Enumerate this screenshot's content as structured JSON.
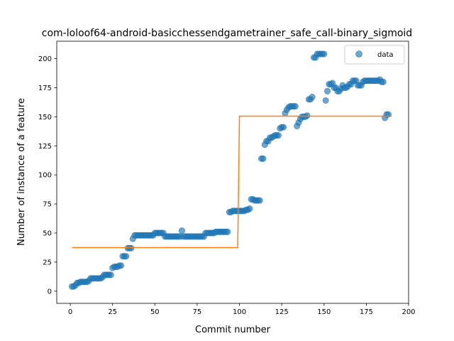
{
  "chart_data": {
    "type": "scatter",
    "title": "com-loloof64-android-basicchessendgametrainer_safe_call-binary_sigmoid",
    "xlabel": "Commit number",
    "ylabel": "Number of instance of a feature",
    "xlim": [
      -8,
      200
    ],
    "ylim": [
      -10.5,
      215
    ],
    "xticks": [
      0,
      25,
      50,
      75,
      100,
      125,
      150,
      175,
      200
    ],
    "yticks": [
      0,
      25,
      50,
      75,
      100,
      125,
      150,
      175,
      200
    ],
    "legend": {
      "position": "top-right",
      "entries": [
        "data"
      ]
    },
    "colors": {
      "data": "#1f77b4",
      "fit": "#ff7f0e"
    },
    "series": [
      {
        "name": "data",
        "kind": "scatter",
        "points": [
          [
            1,
            4
          ],
          [
            2,
            4
          ],
          [
            3,
            5
          ],
          [
            4,
            7
          ],
          [
            5,
            7
          ],
          [
            6,
            8
          ],
          [
            7,
            8
          ],
          [
            8,
            8
          ],
          [
            9,
            8
          ],
          [
            10,
            8
          ],
          [
            11,
            9
          ],
          [
            12,
            11
          ],
          [
            13,
            11
          ],
          [
            14,
            11
          ],
          [
            15,
            11
          ],
          [
            16,
            11
          ],
          [
            17,
            11
          ],
          [
            18,
            11
          ],
          [
            19,
            12
          ],
          [
            20,
            14
          ],
          [
            21,
            14
          ],
          [
            22,
            14
          ],
          [
            23,
            14
          ],
          [
            24,
            14
          ],
          [
            25,
            20
          ],
          [
            26,
            21
          ],
          [
            27,
            21
          ],
          [
            28,
            21
          ],
          [
            29,
            22
          ],
          [
            30,
            22
          ],
          [
            31,
            30
          ],
          [
            32,
            30
          ],
          [
            33,
            30
          ],
          [
            34,
            37
          ],
          [
            35,
            37
          ],
          [
            36,
            37
          ],
          [
            37,
            45
          ],
          [
            38,
            48
          ],
          [
            39,
            48
          ],
          [
            40,
            48
          ],
          [
            41,
            48
          ],
          [
            42,
            48
          ],
          [
            43,
            48
          ],
          [
            44,
            48
          ],
          [
            45,
            48
          ],
          [
            46,
            48
          ],
          [
            47,
            48
          ],
          [
            48,
            48
          ],
          [
            49,
            48
          ],
          [
            50,
            50
          ],
          [
            51,
            50
          ],
          [
            52,
            50
          ],
          [
            53,
            50
          ],
          [
            54,
            50
          ],
          [
            55,
            50
          ],
          [
            56,
            47
          ],
          [
            57,
            47
          ],
          [
            58,
            47
          ],
          [
            59,
            47
          ],
          [
            60,
            47
          ],
          [
            61,
            47
          ],
          [
            62,
            47
          ],
          [
            63,
            47
          ],
          [
            64,
            47
          ],
          [
            65,
            47
          ],
          [
            66,
            52
          ],
          [
            67,
            47
          ],
          [
            68,
            47
          ],
          [
            69,
            47
          ],
          [
            70,
            47
          ],
          [
            71,
            47
          ],
          [
            72,
            47
          ],
          [
            73,
            47
          ],
          [
            74,
            47
          ],
          [
            75,
            47
          ],
          [
            76,
            47
          ],
          [
            77,
            47
          ],
          [
            78,
            47
          ],
          [
            79,
            47
          ],
          [
            80,
            50
          ],
          [
            81,
            50
          ],
          [
            82,
            50
          ],
          [
            83,
            50
          ],
          [
            84,
            50
          ],
          [
            85,
            50
          ],
          [
            86,
            51
          ],
          [
            87,
            51
          ],
          [
            88,
            51
          ],
          [
            89,
            51
          ],
          [
            90,
            51
          ],
          [
            91,
            51
          ],
          [
            92,
            51
          ],
          [
            93,
            51
          ],
          [
            94,
            68
          ],
          [
            95,
            68
          ],
          [
            96,
            69
          ],
          [
            97,
            69
          ],
          [
            98,
            69
          ],
          [
            99,
            69
          ],
          [
            100,
            69
          ],
          [
            101,
            69
          ],
          [
            102,
            69
          ],
          [
            103,
            69
          ],
          [
            104,
            70
          ],
          [
            105,
            70
          ],
          [
            106,
            71
          ],
          [
            107,
            79
          ],
          [
            108,
            79
          ],
          [
            109,
            78
          ],
          [
            110,
            78
          ],
          [
            111,
            78
          ],
          [
            112,
            78
          ],
          [
            113,
            114
          ],
          [
            114,
            114
          ],
          [
            115,
            126
          ],
          [
            116,
            129
          ],
          [
            117,
            129
          ],
          [
            118,
            132
          ],
          [
            119,
            132
          ],
          [
            120,
            133
          ],
          [
            121,
            134
          ],
          [
            122,
            134
          ],
          [
            123,
            134
          ],
          [
            124,
            140
          ],
          [
            125,
            141
          ],
          [
            126,
            141
          ],
          [
            127,
            153
          ],
          [
            128,
            156
          ],
          [
            129,
            158
          ],
          [
            130,
            159
          ],
          [
            131,
            159
          ],
          [
            132,
            159
          ],
          [
            133,
            159
          ],
          [
            134,
            142
          ],
          [
            135,
            145
          ],
          [
            136,
            148
          ],
          [
            137,
            150
          ],
          [
            138,
            150
          ],
          [
            139,
            150
          ],
          [
            140,
            151
          ],
          [
            141,
            165
          ],
          [
            142,
            165
          ],
          [
            143,
            167
          ],
          [
            144,
            201
          ],
          [
            145,
            201
          ],
          [
            146,
            204
          ],
          [
            147,
            204
          ],
          [
            148,
            204
          ],
          [
            149,
            204
          ],
          [
            150,
            204
          ],
          [
            151,
            164
          ],
          [
            152,
            172
          ],
          [
            153,
            178
          ],
          [
            154,
            178
          ],
          [
            155,
            179
          ],
          [
            156,
            175
          ],
          [
            157,
            175
          ],
          [
            158,
            172
          ],
          [
            159,
            172
          ],
          [
            160,
            174
          ],
          [
            161,
            177
          ],
          [
            162,
            175
          ],
          [
            163,
            175
          ],
          [
            164,
            176
          ],
          [
            165,
            178
          ],
          [
            166,
            178
          ],
          [
            167,
            181
          ],
          [
            168,
            181
          ],
          [
            169,
            181
          ],
          [
            170,
            177
          ],
          [
            171,
            177
          ],
          [
            172,
            177
          ],
          [
            173,
            180
          ],
          [
            174,
            181
          ],
          [
            175,
            181
          ],
          [
            176,
            181
          ],
          [
            177,
            181
          ],
          [
            178,
            181
          ],
          [
            179,
            181
          ],
          [
            180,
            181
          ],
          [
            181,
            181
          ],
          [
            182,
            181
          ],
          [
            183,
            182
          ],
          [
            184,
            180
          ],
          [
            185,
            180
          ],
          [
            186,
            149
          ],
          [
            187,
            152
          ],
          [
            188,
            152
          ]
        ]
      },
      {
        "name": "",
        "kind": "line",
        "x": [
          1,
          99,
          100,
          190
        ],
        "y": [
          37.5,
          37.5,
          150.5,
          150.5
        ]
      }
    ]
  }
}
